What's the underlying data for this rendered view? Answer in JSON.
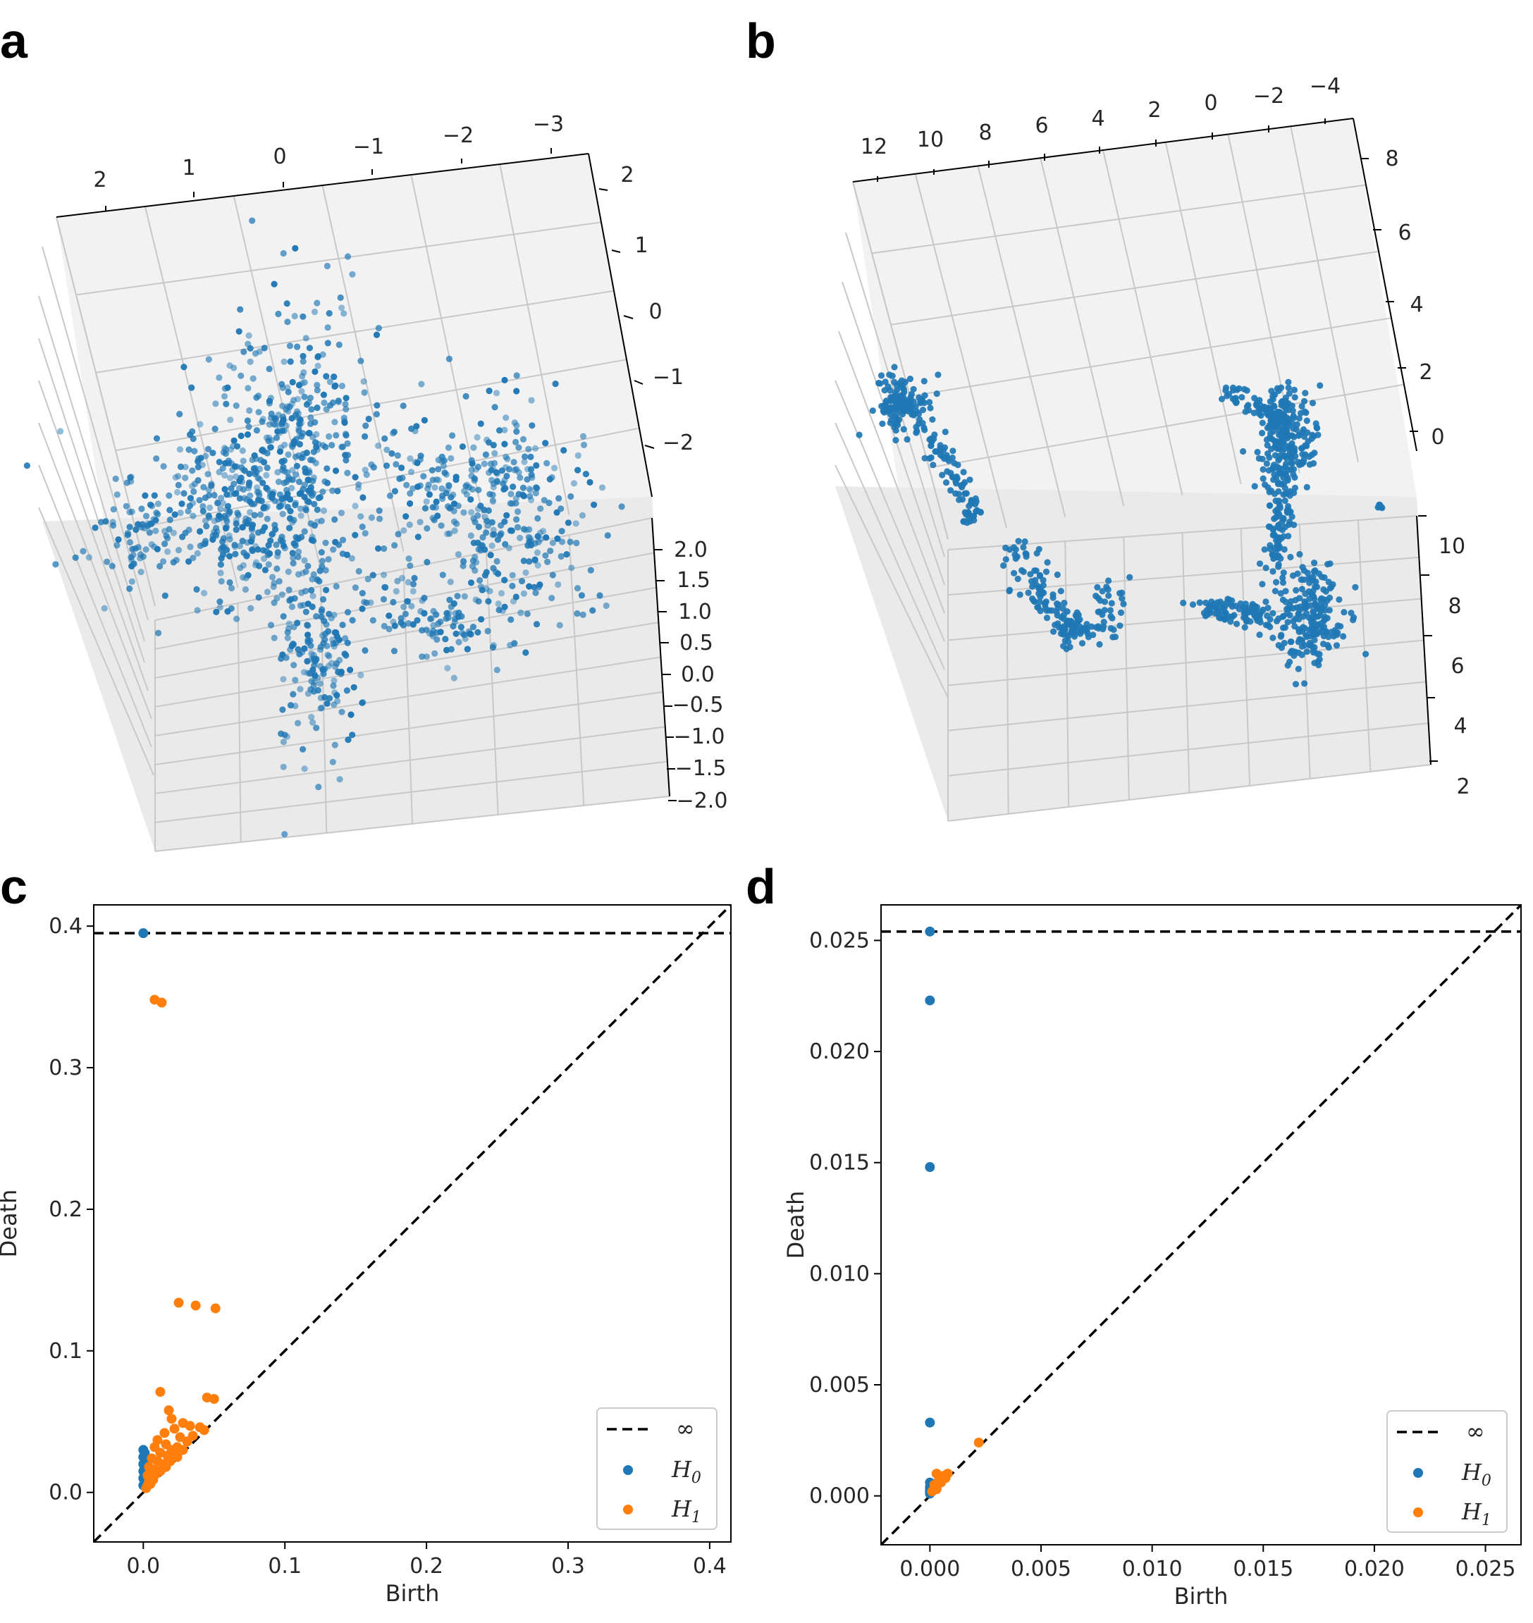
{
  "panels": {
    "a": {
      "label": "a"
    },
    "b": {
      "label": "b"
    },
    "c": {
      "label": "c"
    },
    "d": {
      "label": "d"
    }
  },
  "colors": {
    "h0": "#1f77b4",
    "h1": "#ff7f0e",
    "pane": "#f2f2f2",
    "grid": "#c8c8c8",
    "axis": "#000000"
  },
  "chart_data": [
    {
      "id": "a",
      "type": "scatter",
      "dimensions": 3,
      "axis_top_ticks": [
        "2",
        "1",
        "0",
        "−1",
        "−2",
        "−3"
      ],
      "axis_right_upper_ticks": [
        "2",
        "1",
        "0",
        "−1",
        "−2"
      ],
      "axis_right_lower_ticks": [
        "2.0",
        "1.5",
        "1.0",
        "0.5",
        "0.0",
        "−0.5",
        "−1.0",
        "−1.5",
        "−2.0"
      ],
      "xlim": [
        -3,
        2
      ],
      "ylim": [
        -2,
        2
      ],
      "zlim": [
        -2,
        2
      ],
      "series": [
        {
          "color": "#1f77b4",
          "approx_points": 1500
        }
      ]
    },
    {
      "id": "b",
      "type": "scatter",
      "dimensions": 3,
      "axis_top_ticks": [
        "12",
        "10",
        "8",
        "6",
        "4",
        "2",
        "0",
        "−2",
        "−4"
      ],
      "axis_right_upper_ticks": [
        "8",
        "6",
        "4",
        "2",
        "0"
      ],
      "axis_right_lower_ticks": [
        "10",
        "8",
        "6",
        "4",
        "2"
      ],
      "xlim": [
        -4,
        12
      ],
      "ylim": [
        0,
        8
      ],
      "zlim": [
        2,
        10
      ],
      "series": [
        {
          "color": "#1f77b4",
          "approx_points": 1500
        }
      ]
    },
    {
      "id": "c",
      "type": "scatter",
      "title": "",
      "xlabel": "Birth",
      "ylabel": "Death",
      "xlim": [
        -0.035,
        0.415
      ],
      "ylim": [
        -0.035,
        0.415
      ],
      "xticks": [
        "0.0",
        "0.1",
        "0.2",
        "0.3",
        "0.4"
      ],
      "xtick_values": [
        0,
        0.1,
        0.2,
        0.3,
        0.4
      ],
      "yticks": [
        "0.0",
        "0.1",
        "0.2",
        "0.3",
        "0.4"
      ],
      "ytick_values": [
        0,
        0.1,
        0.2,
        0.3,
        0.4
      ],
      "infinity_value": 0.395,
      "legend": {
        "position": "bottom-right",
        "entries": [
          "∞",
          "H0",
          "H1"
        ]
      },
      "series": [
        {
          "name": "H0",
          "color": "#1f77b4",
          "points": [
            [
              0,
              0.395
            ],
            [
              0,
              0.03
            ],
            [
              0,
              0.025
            ],
            [
              0,
              0.02
            ],
            [
              0,
              0.015
            ],
            [
              0,
              0.01
            ],
            [
              0,
              0.005
            ],
            [
              0.001,
              0.028
            ],
            [
              0.002,
              0.02
            ],
            [
              0.001,
              0.012
            ],
            [
              0.003,
              0.008
            ],
            [
              0.002,
              0.004
            ]
          ]
        },
        {
          "name": "H1",
          "color": "#ff7f0e",
          "points": [
            [
              0.008,
              0.348
            ],
            [
              0.013,
              0.346
            ],
            [
              0.025,
              0.134
            ],
            [
              0.037,
              0.132
            ],
            [
              0.051,
              0.13
            ],
            [
              0.012,
              0.071
            ],
            [
              0.045,
              0.067
            ],
            [
              0.05,
              0.066
            ],
            [
              0.018,
              0.058
            ],
            [
              0.02,
              0.052
            ],
            [
              0.028,
              0.049
            ],
            [
              0.033,
              0.047
            ],
            [
              0.04,
              0.046
            ],
            [
              0.022,
              0.045
            ],
            [
              0.015,
              0.042
            ],
            [
              0.035,
              0.04
            ],
            [
              0.043,
              0.044
            ],
            [
              0.01,
              0.037
            ],
            [
              0.026,
              0.039
            ],
            [
              0.031,
              0.036
            ],
            [
              0.008,
              0.032
            ],
            [
              0.016,
              0.034
            ],
            [
              0.02,
              0.03
            ],
            [
              0.024,
              0.032
            ],
            [
              0.012,
              0.028
            ],
            [
              0.017,
              0.026
            ],
            [
              0.022,
              0.028
            ],
            [
              0.028,
              0.03
            ],
            [
              0.006,
              0.024
            ],
            [
              0.01,
              0.022
            ],
            [
              0.014,
              0.02
            ],
            [
              0.019,
              0.022
            ],
            [
              0.024,
              0.025
            ],
            [
              0.004,
              0.018
            ],
            [
              0.008,
              0.016
            ],
            [
              0.012,
              0.015
            ],
            [
              0.016,
              0.018
            ],
            [
              0.003,
              0.012
            ],
            [
              0.006,
              0.012
            ],
            [
              0.009,
              0.013
            ],
            [
              0.004,
              0.008
            ],
            [
              0.007,
              0.009
            ],
            [
              0.003,
              0.005
            ],
            [
              0.005,
              0.006
            ],
            [
              0.002,
              0.003
            ]
          ]
        }
      ]
    },
    {
      "id": "d",
      "type": "scatter",
      "title": "",
      "xlabel": "Birth",
      "ylabel": "Death",
      "xlim": [
        -0.0022,
        0.0266
      ],
      "ylim": [
        -0.0022,
        0.0266
      ],
      "xticks": [
        "0.000",
        "0.005",
        "0.010",
        "0.015",
        "0.020",
        "0.025"
      ],
      "xtick_values": [
        0,
        0.005,
        0.01,
        0.015,
        0.02,
        0.025
      ],
      "yticks": [
        "0.000",
        "0.005",
        "0.010",
        "0.015",
        "0.020",
        "0.025"
      ],
      "ytick_values": [
        0,
        0.005,
        0.01,
        0.015,
        0.02,
        0.025
      ],
      "infinity_value": 0.0254,
      "legend": {
        "position": "bottom-right",
        "entries": [
          "∞",
          "H0",
          "H1"
        ]
      },
      "series": [
        {
          "name": "H0",
          "color": "#1f77b4",
          "points": [
            [
              0,
              0.0254
            ],
            [
              0,
              0.0223
            ],
            [
              0,
              0.0148
            ],
            [
              0,
              0.0033
            ],
            [
              0,
              0.0006
            ],
            [
              0,
              0.0004
            ],
            [
              0,
              0.0003
            ],
            [
              0,
              0.0002
            ],
            [
              0,
              0.0001
            ]
          ]
        },
        {
          "name": "H1",
          "color": "#ff7f0e",
          "points": [
            [
              0.0022,
              0.0024
            ],
            [
              0.0003,
              0.001
            ],
            [
              0.0006,
              0.0009
            ],
            [
              0.0008,
              0.001
            ],
            [
              0.0004,
              0.0007
            ],
            [
              0.0002,
              0.0005
            ],
            [
              0.0005,
              0.0006
            ],
            [
              0.0003,
              0.0003
            ],
            [
              0.0001,
              0.0002
            ],
            [
              0.0007,
              0.0008
            ]
          ]
        }
      ]
    }
  ]
}
